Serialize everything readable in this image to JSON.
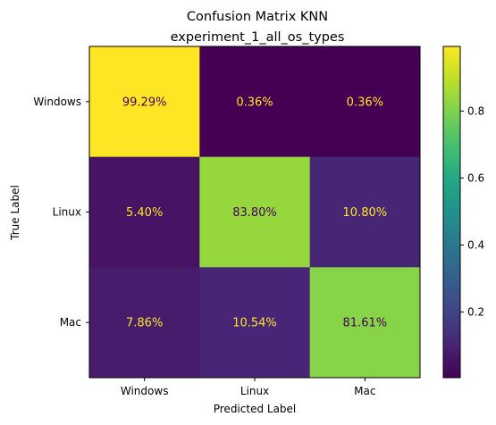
{
  "chart_data": {
    "type": "heatmap",
    "title": "Confusion Matrix KNN",
    "subtitle": "experiment_1_all_os_types",
    "xlabel": "Predicted Label",
    "ylabel": "True Label",
    "x_categories": [
      "Windows",
      "Linux",
      "Mac"
    ],
    "y_categories": [
      "Windows",
      "Linux",
      "Mac"
    ],
    "values": [
      [
        0.9929,
        0.0036,
        0.0036
      ],
      [
        0.054,
        0.838,
        0.108
      ],
      [
        0.0786,
        0.1054,
        0.8161
      ]
    ],
    "cell_labels": [
      [
        "99.29%",
        "0.36%",
        "0.36%"
      ],
      [
        "5.40%",
        "83.80%",
        "10.80%"
      ],
      [
        "7.86%",
        "10.54%",
        "81.61%"
      ]
    ],
    "colormap": "viridis",
    "colorbar": {
      "range": [
        0.0036,
        0.9929
      ],
      "ticks": [
        0.2,
        0.4,
        0.6,
        0.8
      ],
      "tick_labels": [
        "0.2",
        "0.4",
        "0.6",
        "0.8"
      ]
    },
    "label_colors": {
      "on_dark": "#fde725",
      "on_light": "#440154"
    }
  }
}
